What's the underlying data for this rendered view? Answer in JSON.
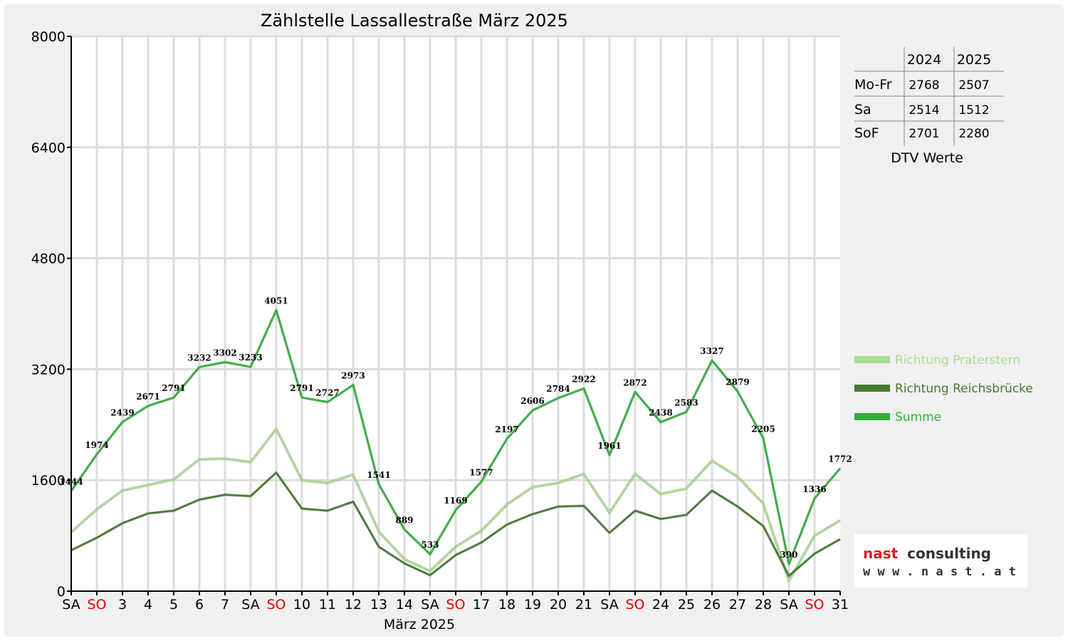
{
  "chart_data": {
    "type": "line",
    "title": "Zählstelle Lassallestraße März 2025",
    "xlabel": "März 2025",
    "ylabel": "",
    "ylim": [
      0,
      8000
    ],
    "yticks": [
      "0",
      "1600",
      "3200",
      "4800",
      "6400",
      "8000"
    ],
    "grid": true,
    "legend_position": "right",
    "categories": [
      "SA",
      "SO",
      "3",
      "4",
      "5",
      "6",
      "7",
      "SA",
      "SO",
      "10",
      "11",
      "12",
      "13",
      "14",
      "SA",
      "SO",
      "17",
      "18",
      "19",
      "20",
      "21",
      "SA",
      "SO",
      "24",
      "25",
      "26",
      "27",
      "28",
      "SA",
      "SO",
      "31"
    ],
    "weekend_categories": [
      "SA",
      "SO"
    ],
    "weekend_color": "#e00000",
    "series": [
      {
        "name": "Richtung Praterstern",
        "color": "#a8dc90",
        "values": [
          850,
          1180,
          1450,
          1530,
          1610,
          1900,
          1910,
          1860,
          2340,
          1600,
          1560,
          1680,
          860,
          460,
          290,
          640,
          870,
          1250,
          1500,
          1560,
          1690,
          1130,
          1690,
          1400,
          1480,
          1880,
          1650,
          1260,
          150,
          800,
          1020
        ]
      },
      {
        "name": "Richtung Reichsbrücke",
        "color": "#447a30",
        "values": [
          590,
          770,
          980,
          1120,
          1160,
          1320,
          1390,
          1370,
          1710,
          1190,
          1160,
          1290,
          640,
          400,
          230,
          520,
          700,
          960,
          1110,
          1220,
          1230,
          840,
          1160,
          1040,
          1100,
          1450,
          1220,
          940,
          220,
          540,
          750
        ]
      },
      {
        "name": "Summe",
        "color": "#2fb03a",
        "values": [
          1444,
          1974,
          2439,
          2671,
          2791,
          3232,
          3302,
          3233,
          4051,
          2791,
          2727,
          2973,
          1541,
          889,
          533,
          1169,
          1577,
          2197,
          2606,
          2784,
          2922,
          1961,
          2872,
          2438,
          2583,
          3327,
          2879,
          2205,
          390,
          1336,
          1772
        ],
        "labels": [
          "1444",
          "1974",
          "2439",
          "2671",
          "2791",
          "3232",
          "3302",
          "3233",
          "4051",
          "2791",
          "2727",
          "2973",
          "1541",
          "889",
          "533",
          "1169",
          "1577",
          "2197",
          "2606",
          "2784",
          "2922",
          "1961",
          "2872",
          "2438",
          "2583",
          "3327",
          "2879",
          "2205",
          "390",
          "1336",
          "1772"
        ]
      }
    ]
  },
  "dtv_table": {
    "caption": "DTV Werte",
    "columns": [
      "2024",
      "2025"
    ],
    "rows": [
      {
        "label": "Mo-Fr",
        "v2024": "2768",
        "v2025": "2507"
      },
      {
        "label": "Sa",
        "v2024": "2514",
        "v2025": "1512"
      },
      {
        "label": "SoF",
        "v2024": "2701",
        "v2025": "2280"
      }
    ]
  },
  "logo": {
    "line1_a": "nast",
    "line1_b": "consulting",
    "line2": "w w w . n a s t . a t",
    "color_a": "#d42020",
    "color_b": "#333333"
  }
}
